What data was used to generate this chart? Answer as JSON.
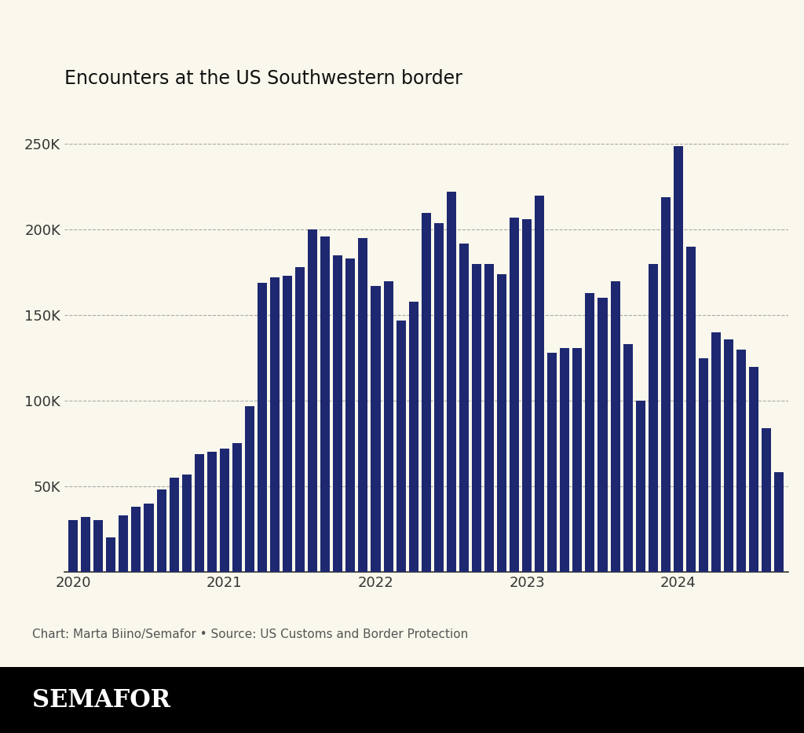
{
  "title": "Encounters at the US Southwestern border",
  "bar_color": "#1e2870",
  "background_color": "#faf8ec",
  "footer_bg": "#000000",
  "footer_text": "SEMAFOR",
  "caption": "Chart: Marta Biino/Semafor • Source: US Customs and Border Protection",
  "ytick_labels": [
    "50K",
    "100K",
    "150K",
    "200K",
    "250K"
  ],
  "ytick_values": [
    50000,
    100000,
    150000,
    200000,
    250000
  ],
  "ylim": [
    0,
    270000
  ],
  "values": [
    30000,
    32000,
    30000,
    20000,
    33000,
    38000,
    40000,
    48000,
    55000,
    57000,
    69000,
    70000,
    72000,
    75000,
    97000,
    169000,
    172000,
    173000,
    178000,
    200000,
    196000,
    185000,
    183000,
    195000,
    167000,
    170000,
    147000,
    158000,
    210000,
    204000,
    222000,
    192000,
    180000,
    180000,
    174000,
    207000,
    206000,
    220000,
    128000,
    131000,
    131000,
    163000,
    160000,
    170000,
    133000,
    100000,
    180000,
    219000,
    249000,
    190000,
    125000,
    140000,
    136000,
    130000,
    120000,
    84000,
    58000
  ],
  "x_tick_positions": [
    0,
    12,
    24,
    36,
    48
  ],
  "x_tick_labels": [
    "2020",
    "2021",
    "2022",
    "2023",
    "2024"
  ],
  "bar_width": 0.75
}
